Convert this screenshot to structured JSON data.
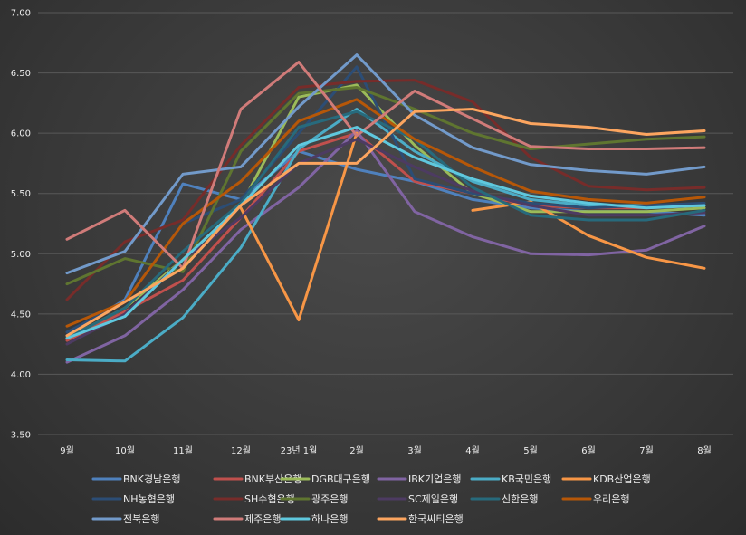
{
  "chart_data": {
    "type": "line",
    "categories": [
      "9월",
      "10월",
      "11월",
      "12월",
      "23년 1월",
      "2월",
      "3월",
      "4월",
      "5월",
      "6월",
      "7월",
      "8월"
    ],
    "yticks": [
      "3.50",
      "4.00",
      "4.50",
      "5.00",
      "5.50",
      "6.00",
      "6.50",
      "7.00"
    ],
    "ylim": [
      3.5,
      7.0
    ],
    "grid": true,
    "legend_position": "bottom",
    "series": [
      {
        "name": "BNK경남은행",
        "color": "#4f81bd",
        "values": [
          4.32,
          4.62,
          5.58,
          5.45,
          5.85,
          5.7,
          5.6,
          5.45,
          5.38,
          5.35,
          5.35,
          5.32
        ]
      },
      {
        "name": "BNK부산은행",
        "color": "#c0504d",
        "values": [
          4.28,
          4.52,
          4.78,
          5.3,
          5.85,
          6.0,
          5.6,
          5.5,
          5.4,
          5.38,
          5.38,
          5.4
        ]
      },
      {
        "name": "DGB대구은행",
        "color": "#9bbb59",
        "values": [
          4.3,
          4.55,
          4.95,
          5.4,
          6.3,
          6.4,
          5.9,
          5.5,
          5.35,
          5.35,
          5.35,
          5.38
        ]
      },
      {
        "name": "IBK기업은행",
        "color": "#8064a2",
        "values": [
          4.1,
          4.32,
          4.7,
          5.2,
          5.55,
          6.02,
          5.35,
          5.14,
          5.0,
          4.99,
          5.03,
          5.23
        ]
      },
      {
        "name": "KB국민은행",
        "color": "#4bacc6",
        "values": [
          4.12,
          4.11,
          4.47,
          5.05,
          5.87,
          6.2,
          5.85,
          5.6,
          5.45,
          5.4,
          5.4,
          5.4
        ]
      },
      {
        "name": "KDB산업은행",
        "color": "#f79646",
        "values": [
          null,
          null,
          null,
          5.38,
          4.45,
          6.0,
          null,
          5.36,
          5.43,
          5.15,
          4.97,
          4.88
        ]
      },
      {
        "name": "NH농협은행",
        "color": "#2c4d75",
        "values": [
          4.35,
          4.6,
          5.25,
          5.45,
          6.0,
          6.55,
          5.62,
          5.5,
          5.42,
          5.38,
          5.4,
          5.42
        ]
      },
      {
        "name": "SH수협은행",
        "color": "#772c2a",
        "values": [
          4.62,
          5.1,
          5.28,
          5.9,
          6.38,
          6.43,
          6.44,
          6.26,
          5.8,
          5.56,
          5.53,
          5.55
        ]
      },
      {
        "name": "광주은행",
        "color": "#5f7530",
        "values": [
          4.75,
          4.96,
          4.85,
          5.85,
          6.33,
          6.38,
          6.2,
          6.0,
          5.87,
          5.91,
          5.95,
          5.97
        ]
      },
      {
        "name": "SC제일은행",
        "color": "#4d3b62",
        "values": [
          4.25,
          4.5,
          4.95,
          5.3,
          5.75,
          5.95,
          5.72,
          5.52,
          5.4,
          5.32,
          5.32,
          5.34
        ]
      },
      {
        "name": "신한은행",
        "color": "#276a7c",
        "values": [
          4.3,
          4.55,
          5.02,
          5.42,
          6.05,
          6.18,
          5.95,
          5.55,
          5.32,
          5.28,
          5.28,
          5.36
        ]
      },
      {
        "name": "우리은행",
        "color": "#b65708",
        "values": [
          4.4,
          4.6,
          5.25,
          5.6,
          6.1,
          6.28,
          5.95,
          5.72,
          5.52,
          5.45,
          5.42,
          5.47
        ]
      },
      {
        "name": "전북은행",
        "color": "#729aca",
        "values": [
          4.84,
          5.02,
          5.66,
          5.72,
          6.22,
          6.65,
          6.15,
          5.88,
          5.74,
          5.69,
          5.66,
          5.72
        ]
      },
      {
        "name": "제주은행",
        "color": "#d07b79",
        "values": [
          5.12,
          5.36,
          4.88,
          6.2,
          6.59,
          5.98,
          6.35,
          6.12,
          5.89,
          5.87,
          5.87,
          5.88
        ]
      },
      {
        "name": "하나은행",
        "color": "#5fc8de",
        "values": [
          4.3,
          4.48,
          4.95,
          5.4,
          5.9,
          6.05,
          5.8,
          5.62,
          5.48,
          5.42,
          5.38,
          5.4
        ]
      },
      {
        "name": "한국씨티은행",
        "color": "#fca55f",
        "values": [
          4.32,
          4.6,
          4.88,
          5.4,
          5.75,
          5.75,
          6.18,
          6.2,
          6.08,
          6.05,
          5.99,
          6.02
        ]
      }
    ]
  }
}
